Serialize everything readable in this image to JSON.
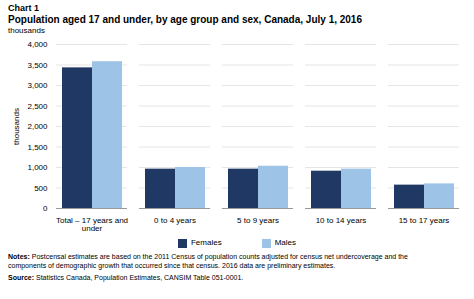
{
  "chart_data": {
    "type": "bar",
    "chart_label": "Chart 1",
    "title": "Population  aged 17 and under, by age group and sex, Canada, July 1, 2016",
    "ylabel": "thousands",
    "categories": [
      "Total – 17 years and\nunder",
      "0 to 4 years",
      "5 to 9 years",
      "10 to 14 years",
      "15 to 17 years"
    ],
    "series": [
      {
        "name": "Females",
        "color": "#1f3864",
        "values": [
          3430,
          960,
          960,
          910,
          570
        ]
      },
      {
        "name": "Males",
        "color": "#9dc3e6",
        "values": [
          3580,
          1000,
          1030,
          960,
          600
        ]
      }
    ],
    "ylim": [
      0,
      4000
    ],
    "yticks": [
      0,
      500,
      {
        "value": 1000,
        "label": "1,000"
      },
      {
        "value": 1500,
        "label": "1,500"
      },
      {
        "value": 2000,
        "label": "2,000"
      },
      {
        "value": 2500,
        "label": "2,500"
      },
      {
        "value": 3000,
        "label": "3,000"
      },
      {
        "value": 3500,
        "label": "3,500"
      },
      {
        "value": 4000,
        "label": "4,000"
      }
    ],
    "grid": true,
    "legend": "bottom",
    "notes": "Notes: Postcensal estimates are based on the 2011 Census of population counts adjusted for census net undercoverage and the\ncomponents of demographic growth that occurred since that census. 2016 data are preliminary estimates.",
    "source": "Source: Statistics Canada, Population Estimates, CANSIM Table 051-0001."
  }
}
